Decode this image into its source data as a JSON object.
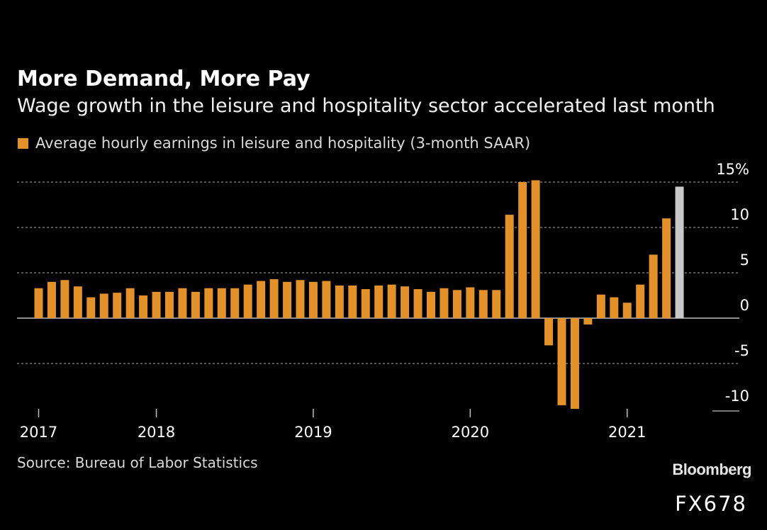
{
  "title": "More Demand, More Pay",
  "subtitle": "Wage growth in the leisure and hospitality sector accelerated last month",
  "legend": "Average hourly earnings in leisure and hospitality (3-month SAAR)",
  "source": "Source: Bureau of Labor Statistics",
  "brand": "Bloomberg",
  "code": "FX678",
  "colors": {
    "bar": "#e3912b",
    "highlight": "#c8c8c8",
    "grid": "#8a8a8a",
    "axis": "#bfbfbf",
    "text": "#ffffff"
  },
  "chart_data": {
    "type": "bar",
    "series": [
      {
        "name": "Average hourly earnings in leisure and hospitality (3-month SAAR)",
        "values": [
          3.3,
          4.0,
          4.2,
          3.5,
          2.3,
          2.7,
          2.8,
          3.3,
          2.5,
          2.9,
          2.9,
          3.3,
          2.9,
          3.3,
          3.3,
          3.3,
          3.7,
          4.1,
          4.3,
          4.0,
          4.2,
          4.0,
          4.1,
          3.6,
          3.6,
          3.2,
          3.6,
          3.7,
          3.5,
          3.2,
          2.9,
          3.3,
          3.1,
          3.4,
          3.1,
          3.1,
          11.4,
          15.0,
          15.2,
          -3.0,
          -9.6,
          -10.0,
          -0.7,
          2.6,
          2.3,
          1.7,
          3.7,
          7.0,
          11.0,
          14.5
        ],
        "highlight_last": true
      }
    ],
    "x_labels": [
      {
        "label": "2017",
        "index": 0
      },
      {
        "label": "2018",
        "index": 9
      },
      {
        "label": "2019",
        "index": 21
      },
      {
        "label": "2020",
        "index": 33
      },
      {
        "label": "2021",
        "index": 45
      }
    ],
    "y_ticks": [
      {
        "value": 15,
        "label": "15%"
      },
      {
        "value": 10,
        "label": "10"
      },
      {
        "value": 5,
        "label": "5"
      },
      {
        "value": 0,
        "label": "0"
      },
      {
        "value": -5,
        "label": "-5"
      },
      {
        "value": -10,
        "label": "-10"
      }
    ],
    "ylim": [
      -10,
      15
    ],
    "grid": true,
    "legend_position": "top-left"
  }
}
